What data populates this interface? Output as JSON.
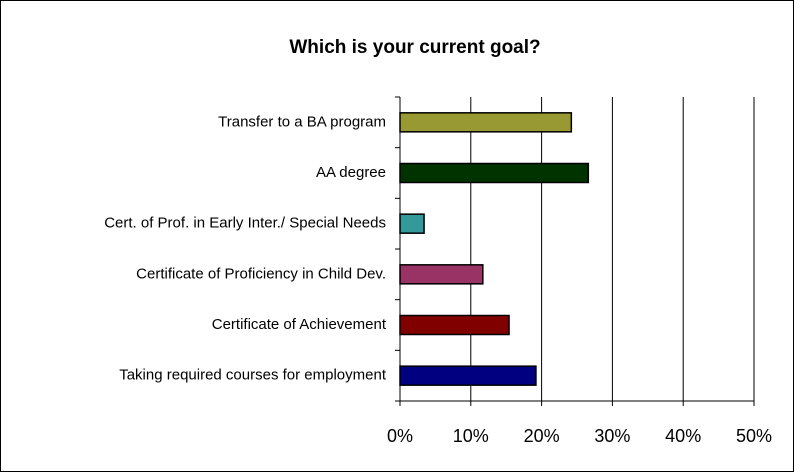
{
  "chart_data": {
    "type": "bar",
    "orientation": "horizontal",
    "title": "Which is your current goal?",
    "categories": [
      "Transfer to a BA program",
      "AA degree",
      "Cert. of Prof. in Early Inter./ Special Needs",
      "Certificate of Proficiency in Child Dev.",
      "Certificate of Achievement",
      "Taking required courses for employment"
    ],
    "values": [
      24.2,
      26.6,
      3.4,
      11.7,
      15.4,
      19.2
    ],
    "colors": [
      "#999933",
      "#003300",
      "#339999",
      "#993366",
      "#800000",
      "#000080"
    ],
    "xlim": [
      0,
      50
    ],
    "xticks": [
      {
        "value": 0,
        "label": "0%"
      },
      {
        "value": 10,
        "label": "10%"
      },
      {
        "value": 20,
        "label": "20%"
      },
      {
        "value": 30,
        "label": "30%"
      },
      {
        "value": 40,
        "label": "40%"
      },
      {
        "value": 50,
        "label": "50%"
      }
    ],
    "grid": true
  }
}
